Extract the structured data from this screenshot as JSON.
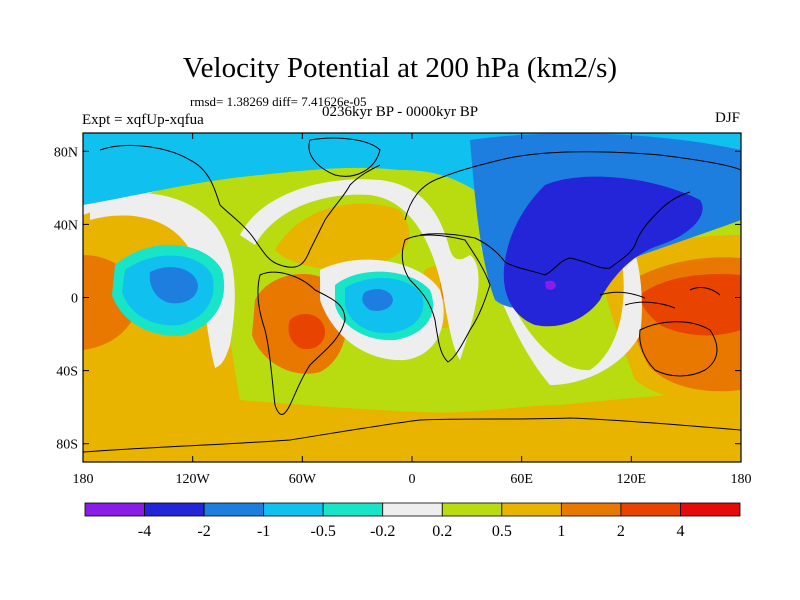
{
  "chart_data": {
    "type": "heatmap",
    "title": "Velocity Potential at 200 hPa (km2/s)",
    "stats_text": "rmsd= 1.38269 diff= 7.41626e-05",
    "left_label": "Expt = xqfUp-xqfua",
    "center_label": "0236kyr BP - 0000kyr BP",
    "right_label": "DJF",
    "x_ticks": [
      "180",
      "120W",
      "60W",
      "0",
      "60E",
      "120E",
      "180"
    ],
    "x_tick_values": [
      -180,
      -120,
      -60,
      0,
      60,
      120,
      180
    ],
    "y_ticks": [
      "80N",
      "40N",
      "0",
      "40S",
      "80S"
    ],
    "y_tick_values": [
      80,
      40,
      0,
      -40,
      -80
    ],
    "xlim": [
      -180,
      180
    ],
    "ylim": [
      -90,
      90
    ],
    "colorbar": {
      "labels": [
        "-4",
        "-2",
        "-1",
        "-0.5",
        "-0.2",
        "0.2",
        "0.5",
        "1",
        "2",
        "4"
      ],
      "levels": [
        -4,
        -2,
        -1,
        -0.5,
        -0.2,
        0.2,
        0.5,
        1,
        2,
        4
      ],
      "colors": [
        "#8a1ce8",
        "#2424d8",
        "#1e7ee0",
        "#10c0ee",
        "#18e4c8",
        "#eeeeee",
        "#b8dc10",
        "#e8b400",
        "#e87800",
        "#e84400",
        "#e80a0a"
      ]
    },
    "field": [
      {
        "lon": -160,
        "lat": 0,
        "value": 1.6
      },
      {
        "lon": -140,
        "lat": 30,
        "value": 1.0
      },
      {
        "lon": -140,
        "lat": 5,
        "value": -0.8
      },
      {
        "lon": -125,
        "lat": -10,
        "value": -0.3
      },
      {
        "lon": -60,
        "lat": -15,
        "value": 2.2
      },
      {
        "lon": -80,
        "lat": 35,
        "value": 0.6
      },
      {
        "lon": -10,
        "lat": 0,
        "value": -0.9
      },
      {
        "lon": 15,
        "lat": 0,
        "value": 1.0
      },
      {
        "lon": 70,
        "lat": 20,
        "value": -2.5
      },
      {
        "lon": 150,
        "lat": 0,
        "value": 3.0
      },
      {
        "lon": 130,
        "lat": -35,
        "value": 1.5
      },
      {
        "lon": 20,
        "lat": -50,
        "value": 0.4
      },
      {
        "lon": -100,
        "lat": -50,
        "value": 0.6
      },
      {
        "lon": 0,
        "lat": 75,
        "value": -0.3
      }
    ]
  }
}
